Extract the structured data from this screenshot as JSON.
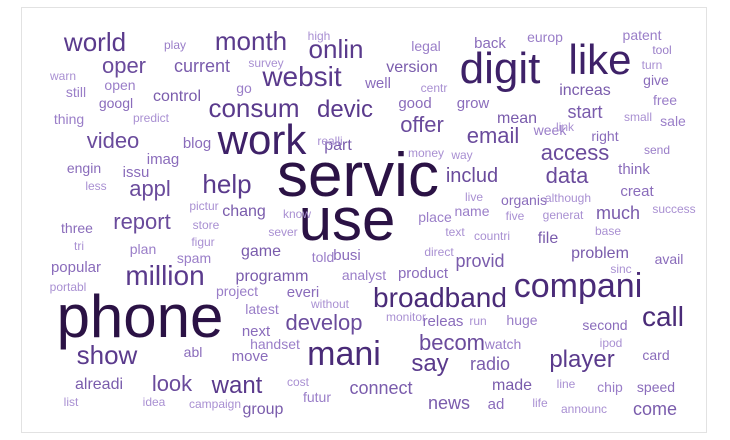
{
  "word_cloud": {
    "words": [
      {
        "text": "servic",
        "weight": 62,
        "color": "#2b1245"
      },
      {
        "text": "use",
        "weight": 62,
        "color": "#2b1245"
      },
      {
        "text": "phone",
        "weight": 62,
        "color": "#2b1245"
      },
      {
        "text": "digit",
        "weight": 46,
        "color": "#3e2168"
      },
      {
        "text": "like",
        "weight": 44,
        "color": "#3e2168"
      },
      {
        "text": "work",
        "weight": 40,
        "color": "#3e2168"
      },
      {
        "text": "compani",
        "weight": 36,
        "color": "#4a2b78"
      },
      {
        "text": "mani",
        "weight": 34,
        "color": "#4a2b78"
      },
      {
        "text": "broadband",
        "weight": 30,
        "color": "#4a2b78"
      },
      {
        "text": "call",
        "weight": 28,
        "color": "#4a2b78"
      },
      {
        "text": "million",
        "weight": 28,
        "color": "#5a3a8c"
      },
      {
        "text": "websit",
        "weight": 27,
        "color": "#5a3a8c"
      },
      {
        "text": "show",
        "weight": 27,
        "color": "#5a3a8c"
      },
      {
        "text": "world",
        "weight": 26,
        "color": "#5a3a8c"
      },
      {
        "text": "onlin",
        "weight": 26,
        "color": "#5a3a8c"
      },
      {
        "text": "month",
        "weight": 25,
        "color": "#5a3a8c"
      },
      {
        "text": "consum",
        "weight": 25,
        "color": "#5a3a8c"
      },
      {
        "text": "help",
        "weight": 25,
        "color": "#5a3a8c"
      },
      {
        "text": "devic",
        "weight": 24,
        "color": "#5a3a8c"
      },
      {
        "text": "player",
        "weight": 24,
        "color": "#5a3a8c"
      },
      {
        "text": "want",
        "weight": 23,
        "color": "#5a3a8c"
      },
      {
        "text": "say",
        "weight": 23,
        "color": "#5a3a8c"
      },
      {
        "text": "offer",
        "weight": 22,
        "color": "#6a4b9c"
      },
      {
        "text": "report",
        "weight": 22,
        "color": "#6a4b9c"
      },
      {
        "text": "develop",
        "weight": 22,
        "color": "#6a4b9c"
      },
      {
        "text": "email",
        "weight": 22,
        "color": "#6a4b9c"
      },
      {
        "text": "data",
        "weight": 22,
        "color": "#6a4b9c"
      },
      {
        "text": "access",
        "weight": 21,
        "color": "#6a4b9c"
      },
      {
        "text": "video",
        "weight": 21,
        "color": "#6a4b9c"
      },
      {
        "text": "appl",
        "weight": 21,
        "color": "#6a4b9c"
      },
      {
        "text": "look",
        "weight": 21,
        "color": "#6a4b9c"
      },
      {
        "text": "oper",
        "weight": 20,
        "color": "#6a4b9c"
      },
      {
        "text": "becom",
        "weight": 20,
        "color": "#6a4b9c"
      },
      {
        "text": "includ",
        "weight": 19,
        "color": "#6a4b9c"
      },
      {
        "text": "connect",
        "weight": 18,
        "color": "#7a5cac"
      },
      {
        "text": "news",
        "weight": 18,
        "color": "#7a5cac"
      },
      {
        "text": "current",
        "weight": 18,
        "color": "#7a5cac"
      },
      {
        "text": "start",
        "weight": 18,
        "color": "#7a5cac"
      },
      {
        "text": "provid",
        "weight": 18,
        "color": "#7a5cac"
      },
      {
        "text": "radio",
        "weight": 18,
        "color": "#7a5cac"
      },
      {
        "text": "much",
        "weight": 17,
        "color": "#7a5cac"
      },
      {
        "text": "come",
        "weight": 17,
        "color": "#7a5cac"
      },
      {
        "text": "alreadi",
        "weight": 16,
        "color": "#7a5cac"
      },
      {
        "text": "made",
        "weight": 16,
        "color": "#7a5cac"
      },
      {
        "text": "mean",
        "weight": 16,
        "color": "#7a5cac"
      },
      {
        "text": "increas",
        "weight": 16,
        "color": "#7a5cac"
      },
      {
        "text": "version",
        "weight": 16,
        "color": "#7a5cac"
      },
      {
        "text": "file",
        "weight": 16,
        "color": "#7a5cac"
      },
      {
        "text": "problem",
        "weight": 16,
        "color": "#7a5cac"
      },
      {
        "text": "group",
        "weight": 15,
        "color": "#7a5cac"
      },
      {
        "text": "control",
        "weight": 15,
        "color": "#7a5cac"
      },
      {
        "text": "part",
        "weight": 15,
        "color": "#7a5cac"
      },
      {
        "text": "chang",
        "weight": 15,
        "color": "#7a5cac"
      },
      {
        "text": "game",
        "weight": 15,
        "color": "#7a5cac"
      },
      {
        "text": "programm",
        "weight": 15,
        "color": "#7a5cac"
      },
      {
        "text": "move",
        "weight": 14,
        "color": "#8a6cbb"
      },
      {
        "text": "next",
        "weight": 14,
        "color": "#8a6cbb"
      },
      {
        "text": "back",
        "weight": 14,
        "color": "#8a6cbb"
      },
      {
        "text": "popular",
        "weight": 14,
        "color": "#8a6cbb"
      },
      {
        "text": "blog",
        "weight": 14,
        "color": "#8a6cbb"
      },
      {
        "text": "imag",
        "weight": 14,
        "color": "#8a6cbb"
      },
      {
        "text": "issu",
        "weight": 14,
        "color": "#8a6cbb"
      },
      {
        "text": "ad",
        "weight": 14,
        "color": "#8a6cbb"
      },
      {
        "text": "everi",
        "weight": 14,
        "color": "#8a6cbb"
      },
      {
        "text": "product",
        "weight": 14,
        "color": "#8a6cbb"
      },
      {
        "text": "busi",
        "weight": 14,
        "color": "#8a6cbb"
      },
      {
        "text": "creat",
        "weight": 14,
        "color": "#8a6cbb"
      },
      {
        "text": "think",
        "weight": 14,
        "color": "#8a6cbb"
      },
      {
        "text": "releas",
        "weight": 14,
        "color": "#8a6cbb"
      },
      {
        "text": "well",
        "weight": 14,
        "color": "#8a6cbb"
      },
      {
        "text": "good",
        "weight": 14,
        "color": "#8a6cbb"
      },
      {
        "text": "grow",
        "weight": 13,
        "color": "#8a6cbb"
      },
      {
        "text": "googl",
        "weight": 13,
        "color": "#8a6cbb"
      },
      {
        "text": "organis",
        "weight": 13,
        "color": "#8a6cbb"
      },
      {
        "text": "second",
        "weight": 13,
        "color": "#8a6cbb"
      },
      {
        "text": "avail",
        "weight": 13,
        "color": "#8a6cbb"
      },
      {
        "text": "right",
        "weight": 13,
        "color": "#8a6cbb"
      },
      {
        "text": "give",
        "weight": 13,
        "color": "#8a6cbb"
      },
      {
        "text": "abl",
        "weight": 13,
        "color": "#8a6cbb"
      },
      {
        "text": "speed",
        "weight": 13,
        "color": "#8a6cbb"
      },
      {
        "text": "card",
        "weight": 13,
        "color": "#8a6cbb"
      },
      {
        "text": "engin",
        "weight": 13,
        "color": "#8a6cbb"
      },
      {
        "text": "three",
        "weight": 13,
        "color": "#8a6cbb"
      },
      {
        "text": "plan",
        "weight": 12,
        "color": "#9a7ec8"
      },
      {
        "text": "told",
        "weight": 12,
        "color": "#9a7ec8"
      },
      {
        "text": "analyst",
        "weight": 12,
        "color": "#9a7ec8"
      },
      {
        "text": "thing",
        "weight": 12,
        "color": "#9a7ec8"
      },
      {
        "text": "patent",
        "weight": 12,
        "color": "#9a7ec8"
      },
      {
        "text": "europ",
        "weight": 12,
        "color": "#9a7ec8"
      },
      {
        "text": "legal",
        "weight": 12,
        "color": "#9a7ec8"
      },
      {
        "text": "spam",
        "weight": 12,
        "color": "#9a7ec8"
      },
      {
        "text": "handset",
        "weight": 12,
        "color": "#9a7ec8"
      },
      {
        "text": "futur",
        "weight": 12,
        "color": "#9a7ec8"
      },
      {
        "text": "watch",
        "weight": 12,
        "color": "#9a7ec8"
      },
      {
        "text": "huge",
        "weight": 12,
        "color": "#9a7ec8"
      },
      {
        "text": "chip",
        "weight": 12,
        "color": "#9a7ec8"
      },
      {
        "text": "latest",
        "weight": 12,
        "color": "#9a7ec8"
      },
      {
        "text": "project",
        "weight": 12,
        "color": "#9a7ec8"
      },
      {
        "text": "place",
        "weight": 12,
        "color": "#9a7ec8"
      },
      {
        "text": "name",
        "weight": 12,
        "color": "#9a7ec8"
      },
      {
        "text": "still",
        "weight": 12,
        "color": "#9a7ec8"
      },
      {
        "text": "go",
        "weight": 12,
        "color": "#9a7ec8"
      },
      {
        "text": "open",
        "weight": 12,
        "color": "#9a7ec8"
      },
      {
        "text": "week",
        "weight": 12,
        "color": "#9a7ec8"
      },
      {
        "text": "free",
        "weight": 12,
        "color": "#9a7ec8"
      },
      {
        "text": "sale",
        "weight": 12,
        "color": "#9a7ec8"
      },
      {
        "text": "send",
        "weight": 12,
        "color": "#9a7ec8"
      },
      {
        "text": "tool",
        "weight": 12,
        "color": "#9a7ec8"
      },
      {
        "text": "play",
        "weight": 12,
        "color": "#9a7ec8"
      },
      {
        "text": "high",
        "weight": 11,
        "color": "#a990d2"
      },
      {
        "text": "warn",
        "weight": 11,
        "color": "#a990d2"
      },
      {
        "text": "survey",
        "weight": 11,
        "color": "#a990d2"
      },
      {
        "text": "centr",
        "weight": 11,
        "color": "#a990d2"
      },
      {
        "text": "turn",
        "weight": 11,
        "color": "#a990d2"
      },
      {
        "text": "predict",
        "weight": 11,
        "color": "#a990d2"
      },
      {
        "text": "small",
        "weight": 11,
        "color": "#a990d2"
      },
      {
        "text": "realli",
        "weight": 11,
        "color": "#a990d2"
      },
      {
        "text": "money",
        "weight": 11,
        "color": "#a990d2"
      },
      {
        "text": "way",
        "weight": 11,
        "color": "#a990d2"
      },
      {
        "text": "link",
        "weight": 11,
        "color": "#a990d2"
      },
      {
        "text": "less",
        "weight": 11,
        "color": "#a990d2"
      },
      {
        "text": "pictur",
        "weight": 11,
        "color": "#a990d2"
      },
      {
        "text": "live",
        "weight": 11,
        "color": "#a990d2"
      },
      {
        "text": "although",
        "weight": 11,
        "color": "#a990d2"
      },
      {
        "text": "store",
        "weight": 11,
        "color": "#a990d2"
      },
      {
        "text": "know",
        "weight": 11,
        "color": "#a990d2"
      },
      {
        "text": "five",
        "weight": 11,
        "color": "#a990d2"
      },
      {
        "text": "generat",
        "weight": 11,
        "color": "#a990d2"
      },
      {
        "text": "success",
        "weight": 11,
        "color": "#a990d2"
      },
      {
        "text": "tri",
        "weight": 11,
        "color": "#a990d2"
      },
      {
        "text": "figur",
        "weight": 11,
        "color": "#a990d2"
      },
      {
        "text": "sever",
        "weight": 11,
        "color": "#a990d2"
      },
      {
        "text": "text",
        "weight": 11,
        "color": "#a990d2"
      },
      {
        "text": "countri",
        "weight": 11,
        "color": "#a990d2"
      },
      {
        "text": "base",
        "weight": 11,
        "color": "#a990d2"
      },
      {
        "text": "direct",
        "weight": 11,
        "color": "#a990d2"
      },
      {
        "text": "sinc",
        "weight": 11,
        "color": "#a990d2"
      },
      {
        "text": "portabl",
        "weight": 11,
        "color": "#a990d2"
      },
      {
        "text": "without",
        "weight": 11,
        "color": "#a990d2"
      },
      {
        "text": "monitor",
        "weight": 11,
        "color": "#a990d2"
      },
      {
        "text": "run",
        "weight": 11,
        "color": "#a990d2"
      },
      {
        "text": "ipod",
        "weight": 11,
        "color": "#a990d2"
      },
      {
        "text": "cost",
        "weight": 11,
        "color": "#a990d2"
      },
      {
        "text": "line",
        "weight": 11,
        "color": "#a990d2"
      },
      {
        "text": "list",
        "weight": 11,
        "color": "#a990d2"
      },
      {
        "text": "idea",
        "weight": 11,
        "color": "#a990d2"
      },
      {
        "text": "campaign",
        "weight": 11,
        "color": "#a990d2"
      },
      {
        "text": "life",
        "weight": 11,
        "color": "#a990d2"
      },
      {
        "text": "announc",
        "weight": 11,
        "color": "#a990d2"
      },
      {
        "text": "recent",
        "weight": 11,
        "color": "#a990d2"
      },
      {
        "text": "bill",
        "weight": 11,
        "color": "#a990d2"
      },
      {
        "text": "might",
        "weight": 11,
        "color": "#a990d2"
      },
      {
        "text": "anoth",
        "weight": 11,
        "color": "#a990d2"
      }
    ]
  }
}
